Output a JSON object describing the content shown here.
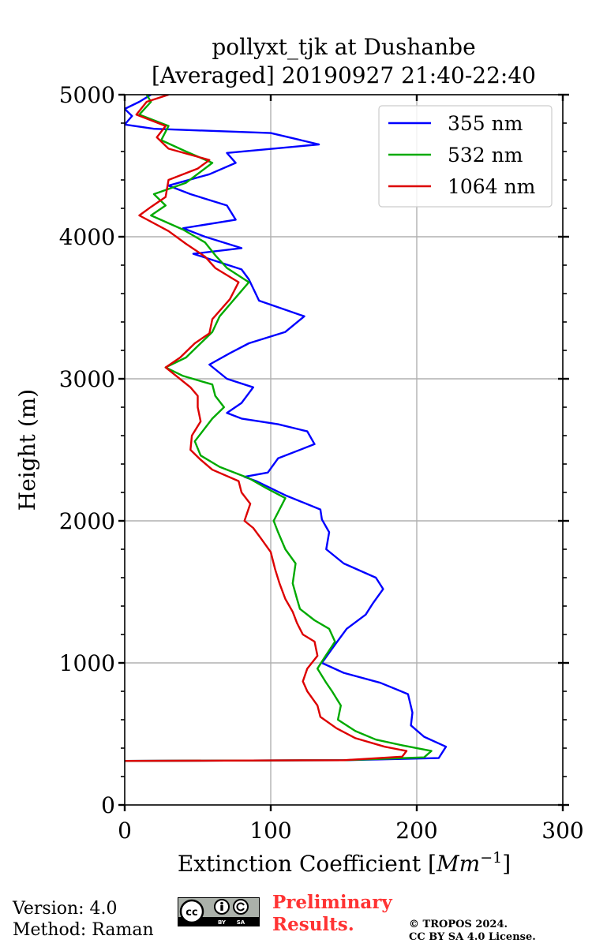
{
  "chart_data": {
    "type": "line",
    "title": [
      "pollyxt_tjk at Dushanbe",
      "[Averaged] 20190927 21:40-22:40"
    ],
    "xlabel": "Extinction Coefficient [Mm^-1]",
    "xlabel_main": "Extinction Coefficient [",
    "xlabel_unit": "Mm",
    "xlabel_exp": "−1",
    "xlabel_close": "]",
    "ylabel": "Height (m)",
    "xlim": [
      0,
      300
    ],
    "ylim": [
      0,
      5000
    ],
    "xticks": [
      0,
      100,
      200,
      300
    ],
    "yticks": [
      0,
      1000,
      2000,
      3000,
      4000,
      5000
    ],
    "grid": true,
    "legend_position": "top-right",
    "series": [
      {
        "name": "355 nm",
        "color": "#0000ff",
        "points": [
          [
            0,
            310
          ],
          [
            150,
            315
          ],
          [
            215,
            330
          ],
          [
            220,
            410
          ],
          [
            205,
            480
          ],
          [
            196,
            560
          ],
          [
            197,
            650
          ],
          [
            194,
            780
          ],
          [
            175,
            860
          ],
          [
            150,
            930
          ],
          [
            135,
            1000
          ],
          [
            142,
            1100
          ],
          [
            152,
            1240
          ],
          [
            165,
            1340
          ],
          [
            170,
            1420
          ],
          [
            177,
            1520
          ],
          [
            172,
            1600
          ],
          [
            150,
            1700
          ],
          [
            138,
            1800
          ],
          [
            140,
            1920
          ],
          [
            135,
            2010
          ],
          [
            134,
            2080
          ],
          [
            110,
            2180
          ],
          [
            90,
            2280
          ],
          [
            82,
            2310
          ],
          [
            98,
            2340
          ],
          [
            105,
            2440
          ],
          [
            130,
            2540
          ],
          [
            125,
            2630
          ],
          [
            105,
            2680
          ],
          [
            80,
            2720
          ],
          [
            70,
            2760
          ],
          [
            80,
            2830
          ],
          [
            88,
            2940
          ],
          [
            70,
            3000
          ],
          [
            58,
            3100
          ],
          [
            72,
            3180
          ],
          [
            85,
            3250
          ],
          [
            110,
            3330
          ],
          [
            123,
            3440
          ],
          [
            92,
            3550
          ],
          [
            85,
            3700
          ],
          [
            80,
            3770
          ],
          [
            47,
            3880
          ],
          [
            80,
            3920
          ],
          [
            55,
            4000
          ],
          [
            40,
            4060
          ],
          [
            76,
            4120
          ],
          [
            70,
            4220
          ],
          [
            45,
            4300
          ],
          [
            30,
            4360
          ],
          [
            58,
            4440
          ],
          [
            76,
            4520
          ],
          [
            70,
            4590
          ],
          [
            133,
            4650
          ],
          [
            100,
            4730
          ],
          [
            20,
            4760
          ],
          [
            0,
            4790
          ],
          [
            5,
            4850
          ],
          [
            0,
            4900
          ],
          [
            10,
            4950
          ],
          [
            18,
            5000
          ]
        ]
      },
      {
        "name": "532 nm",
        "color": "#00aa00",
        "points": [
          [
            0,
            310
          ],
          [
            150,
            315
          ],
          [
            205,
            335
          ],
          [
            210,
            380
          ],
          [
            190,
            420
          ],
          [
            172,
            460
          ],
          [
            158,
            520
          ],
          [
            146,
            600
          ],
          [
            148,
            700
          ],
          [
            142,
            800
          ],
          [
            138,
            860
          ],
          [
            132,
            960
          ],
          [
            137,
            1040
          ],
          [
            144,
            1150
          ],
          [
            140,
            1240
          ],
          [
            130,
            1300
          ],
          [
            120,
            1380
          ],
          [
            118,
            1450
          ],
          [
            115,
            1560
          ],
          [
            117,
            1700
          ],
          [
            110,
            1800
          ],
          [
            105,
            1920
          ],
          [
            102,
            2000
          ],
          [
            110,
            2160
          ],
          [
            97,
            2230
          ],
          [
            85,
            2300
          ],
          [
            65,
            2380
          ],
          [
            52,
            2460
          ],
          [
            48,
            2560
          ],
          [
            54,
            2640
          ],
          [
            60,
            2720
          ],
          [
            68,
            2800
          ],
          [
            62,
            2880
          ],
          [
            60,
            2960
          ],
          [
            40,
            3020
          ],
          [
            28,
            3080
          ],
          [
            42,
            3150
          ],
          [
            52,
            3250
          ],
          [
            60,
            3330
          ],
          [
            65,
            3440
          ],
          [
            75,
            3560
          ],
          [
            85,
            3680
          ],
          [
            70,
            3780
          ],
          [
            62,
            3870
          ],
          [
            55,
            3960
          ],
          [
            40,
            4050
          ],
          [
            18,
            4150
          ],
          [
            28,
            4220
          ],
          [
            20,
            4300
          ],
          [
            42,
            4380
          ],
          [
            60,
            4520
          ],
          [
            42,
            4600
          ],
          [
            25,
            4680
          ],
          [
            30,
            4780
          ],
          [
            10,
            4860
          ],
          [
            18,
            4950
          ],
          [
            15,
            5000
          ]
        ]
      },
      {
        "name": "1064 nm",
        "color": "#dd0000",
        "points": [
          [
            0,
            310
          ],
          [
            150,
            315
          ],
          [
            190,
            340
          ],
          [
            193,
            380
          ],
          [
            178,
            410
          ],
          [
            158,
            470
          ],
          [
            145,
            540
          ],
          [
            134,
            620
          ],
          [
            132,
            700
          ],
          [
            125,
            800
          ],
          [
            122,
            870
          ],
          [
            125,
            960
          ],
          [
            132,
            1050
          ],
          [
            130,
            1150
          ],
          [
            122,
            1200
          ],
          [
            118,
            1280
          ],
          [
            115,
            1360
          ],
          [
            110,
            1450
          ],
          [
            106,
            1560
          ],
          [
            103,
            1660
          ],
          [
            100,
            1780
          ],
          [
            93,
            1880
          ],
          [
            88,
            1950
          ],
          [
            82,
            2000
          ],
          [
            86,
            2120
          ],
          [
            80,
            2200
          ],
          [
            78,
            2280
          ],
          [
            60,
            2360
          ],
          [
            52,
            2430
          ],
          [
            45,
            2500
          ],
          [
            46,
            2600
          ],
          [
            52,
            2700
          ],
          [
            50,
            2800
          ],
          [
            50,
            2880
          ],
          [
            45,
            2940
          ],
          [
            28,
            3080
          ],
          [
            38,
            3150
          ],
          [
            48,
            3250
          ],
          [
            58,
            3320
          ],
          [
            60,
            3420
          ],
          [
            72,
            3560
          ],
          [
            78,
            3680
          ],
          [
            62,
            3780
          ],
          [
            55,
            3860
          ],
          [
            42,
            3950
          ],
          [
            30,
            4040
          ],
          [
            10,
            4150
          ],
          [
            18,
            4210
          ],
          [
            28,
            4280
          ],
          [
            30,
            4400
          ],
          [
            50,
            4480
          ],
          [
            58,
            4540
          ],
          [
            30,
            4620
          ],
          [
            22,
            4700
          ],
          [
            28,
            4780
          ],
          [
            8,
            4860
          ],
          [
            15,
            4950
          ],
          [
            30,
            5000
          ]
        ]
      }
    ]
  },
  "footer": {
    "version": "Version: 4.0",
    "method": "Method: Raman",
    "preliminary_line1": "Preliminary",
    "preliminary_line2": "Results.",
    "copyright_line1": "© TROPOS 2024.",
    "copyright_line2": "CC BY SA 4.0 License.",
    "license_badge": "cc-by-sa-badge",
    "license_text_by": "BY",
    "license_text_sa": "SA"
  }
}
